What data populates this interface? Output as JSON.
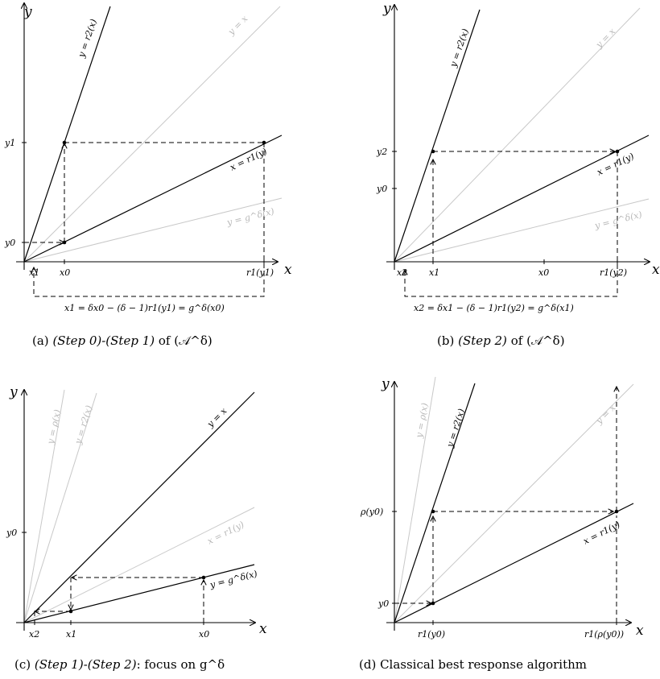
{
  "panel_a": {
    "axis_x": "x",
    "axis_y": "y",
    "line_r2": "y = r2(x)",
    "line_yx": "y = x",
    "line_r1": "x = r1(y)",
    "line_g": "y = g^δ(x)",
    "tick_y1": "y1",
    "tick_y0": "y0",
    "tick_x1": "x1",
    "tick_x0": "x0",
    "tick_r1y1": "r1(y1)",
    "formula": "x1 = δx0 − (δ − 1)r1(y1) = g^δ(x0)",
    "caption_prefix": "(a)",
    "caption_step": "(Step 0)-(Step 1)",
    "caption_mid": "of",
    "caption_alg": "(𝒜^δ)"
  },
  "panel_b": {
    "axis_x": "x",
    "axis_y": "y",
    "line_r2": "y = r2(x)",
    "line_yx": "y = x",
    "line_r1": "x = r1(y)",
    "line_g": "y = g^δ(x)",
    "tick_y2": "y2",
    "tick_y0": "y0",
    "tick_x2": "x2",
    "tick_x1": "x1",
    "tick_x0": "x0",
    "tick_r1y2": "r1(y2)",
    "formula": "x2 = δx1 − (δ − 1)r1(y2) = g^δ(x1)",
    "caption_prefix": "(b)",
    "caption_step": "(Step 2)",
    "caption_mid": "of",
    "caption_alg": "(𝒜^δ)"
  },
  "panel_c": {
    "axis_x": "x",
    "axis_y": "y",
    "line_rho": "y = ρ(x)",
    "line_r2": "y = r2(x)",
    "line_yx": "y = x",
    "line_r1": "x = r1(y)",
    "line_g": "y = g^δ(x)",
    "tick_y0": "y0",
    "tick_x2": "x2",
    "tick_x1": "x1",
    "tick_x0": "x0",
    "caption_prefix": "(c)",
    "caption_step": "(Step 1)-(Step 2)",
    "caption_rest": ": focus on g^δ"
  },
  "panel_d": {
    "axis_x": "x",
    "axis_y": "y",
    "line_rho": "y = ρ(x)",
    "line_r2": "y = r2(x)",
    "line_yx": "y = x",
    "line_r1": "x = r1(y)",
    "tick_rhoy0": "ρ(y0)",
    "tick_y0": "y0",
    "tick_r1y0": "r1(y0)",
    "tick_r1rhoy0": "r1(ρ(y0))",
    "caption": "(d) Classical best response algorithm"
  }
}
